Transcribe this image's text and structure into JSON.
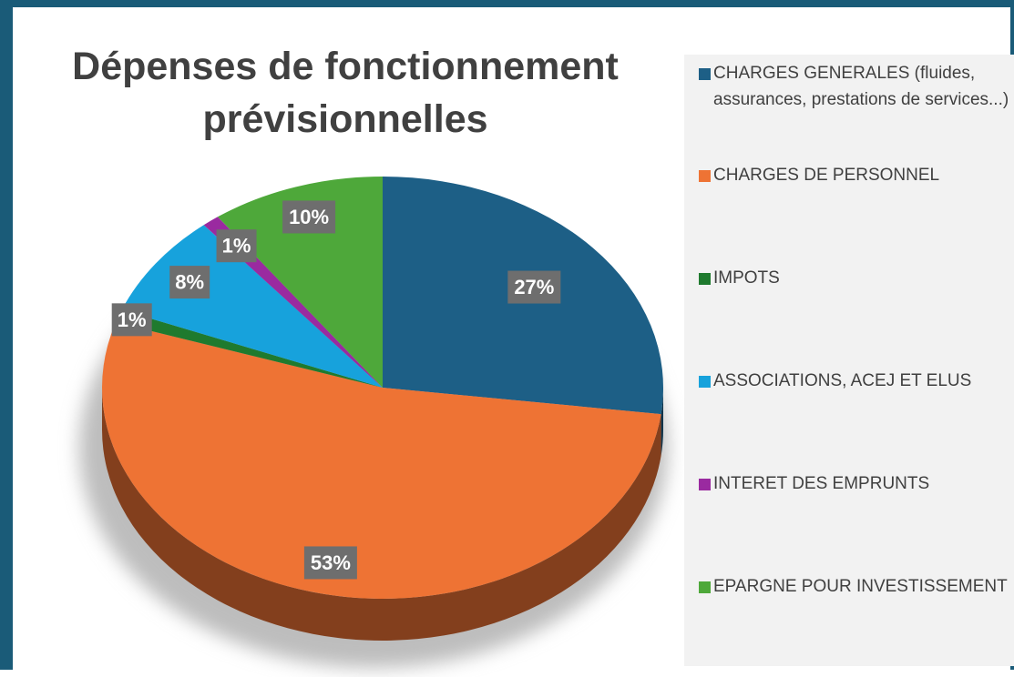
{
  "chart_data": {
    "type": "pie",
    "title": "Dépenses de fonctionnement prévisionnelles",
    "categories": [
      "CHARGES GENERALES (fluides, assurances, prestations de services...)",
      "CHARGES DE PERSONNEL",
      "IMPOTS",
      "ASSOCIATIONS, ACEJ ET ELUS",
      "INTERET DES EMPRUNTS",
      "EPARGNE POUR INVESTISSEMENT"
    ],
    "values": [
      27,
      53,
      1,
      8,
      1,
      10
    ],
    "value_labels": [
      "27%",
      "53%",
      "1%",
      "8%",
      "1%",
      "10%"
    ],
    "colors": [
      "#1d5f86",
      "#ee7334",
      "#1f7a2e",
      "#17a2dc",
      "#9a2aa0",
      "#4ea83a"
    ],
    "legend": "right"
  }
}
